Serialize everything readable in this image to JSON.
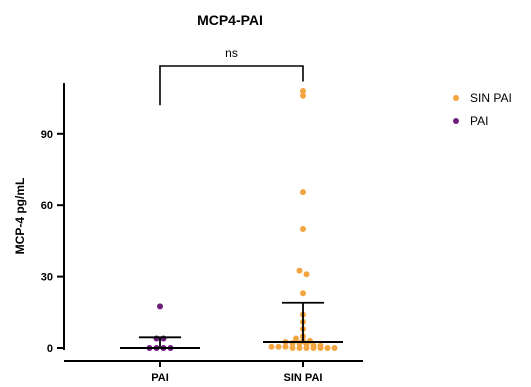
{
  "chart_data": {
    "type": "scatter",
    "title": "MCP4-PAI",
    "ylabel": "MCP-4 pg/mL",
    "xlabel": "",
    "categories": [
      "PAI",
      "SIN PAI"
    ],
    "ylim": [
      -3,
      110
    ],
    "yticks": [
      0,
      30,
      60,
      90
    ],
    "grid": false,
    "legend_position": "right",
    "legend": [
      {
        "label": "SIN PAI",
        "color": "#F2A541"
      },
      {
        "label": "PAI",
        "color": "#6B1F7A"
      }
    ],
    "series": [
      {
        "name": "PAI",
        "category": "PAI",
        "color": "#6B1F7A",
        "values": [
          17.5,
          4,
          4,
          0,
          0,
          0,
          0
        ],
        "median": 0,
        "error_high": 4.5,
        "error_low": 0
      },
      {
        "name": "SIN PAI",
        "category": "SIN PAI",
        "color": "#F2A541",
        "values": [
          108,
          106,
          65.5,
          50,
          32.5,
          31,
          23,
          14,
          11,
          8,
          5,
          4,
          3,
          3,
          2.5,
          2,
          2,
          1.5,
          1,
          1,
          0.5,
          0.5,
          0.5,
          0,
          0,
          0,
          0,
          0,
          0,
          0
        ],
        "median": 2.5,
        "error_high": 19,
        "error_low": 0
      }
    ],
    "significance": {
      "label": "ns",
      "between": [
        "PAI",
        "SIN PAI"
      ],
      "y": 116
    }
  }
}
